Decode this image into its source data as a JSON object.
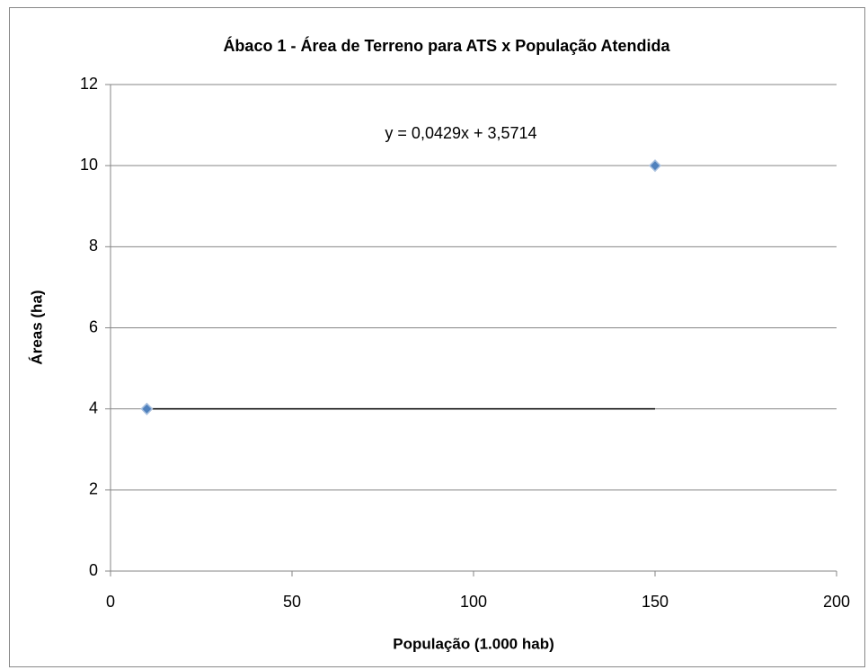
{
  "chart_data": {
    "type": "scatter",
    "title": "Ábaco 1 - Área de Terreno para ATS x População Atendida",
    "x_label": "População (1.000 hab)",
    "y_label": "Áreas (ha)",
    "annotation": "y = 0,0429x + 3,5714",
    "series": [
      {
        "color": "#4f81bd",
        "mode": "markers",
        "x": [
          10,
          150
        ],
        "values": [
          4,
          10
        ]
      },
      {
        "color": "#000000",
        "mode": "line",
        "x": [
          10,
          150
        ],
        "values": [
          4,
          4
        ]
      }
    ],
    "xlim": [
      0,
      200
    ],
    "xticks": [
      0,
      50,
      100,
      150,
      200
    ],
    "ylim": [
      0,
      12
    ],
    "yticks": [
      0,
      2,
      4,
      6,
      8,
      10,
      12
    ],
    "grid": true
  }
}
